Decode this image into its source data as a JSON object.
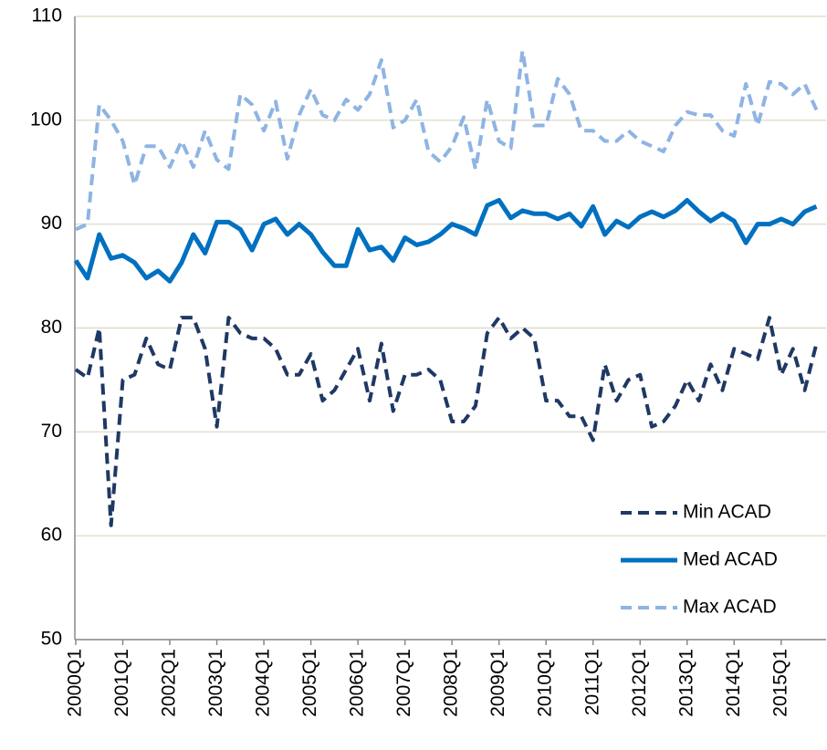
{
  "chart_data": {
    "type": "line",
    "categories": [
      "2000Q1",
      null,
      null,
      null,
      "2001Q1",
      null,
      null,
      null,
      "2002Q1",
      null,
      null,
      null,
      "2003Q1",
      null,
      null,
      null,
      "2004Q1",
      null,
      null,
      null,
      "2005Q1",
      null,
      null,
      null,
      "2006Q1",
      null,
      null,
      null,
      "2007Q1",
      null,
      null,
      null,
      "2008Q1",
      null,
      null,
      null,
      "2009Q1",
      null,
      null,
      null,
      "2010Q1",
      null,
      null,
      null,
      "2011Q1",
      null,
      null,
      null,
      "2012Q1",
      null,
      null,
      null,
      "2013Q1",
      null,
      null,
      null,
      "2014Q1",
      null,
      null,
      null,
      "2015Q1",
      null,
      null,
      null
    ],
    "series": [
      {
        "name": "Min ACAD",
        "color": "#1f3864",
        "dash": true,
        "values": [
          76,
          75.2,
          80,
          61,
          75,
          75.5,
          79,
          76.5,
          76,
          81,
          81,
          78,
          70.5,
          81,
          79.5,
          79,
          79,
          78,
          75.5,
          75.5,
          77.5,
          73,
          74,
          76,
          78,
          73,
          78.5,
          72,
          75.5,
          75.5,
          76,
          75,
          71,
          71,
          72.5,
          79.5,
          81,
          79,
          80,
          79,
          73,
          73,
          71.5,
          71.5,
          69.2,
          76.5,
          73,
          75,
          75.5,
          70.5,
          71,
          72.5,
          75,
          73,
          76.5,
          74,
          78,
          77.5,
          77,
          81,
          75.5,
          78,
          74,
          78.5
        ]
      },
      {
        "name": "Med ACAD",
        "color": "#0070c0",
        "dash": false,
        "values": [
          86.5,
          84.8,
          89,
          86.7,
          87,
          86.3,
          84.8,
          85.5,
          84.5,
          86.3,
          89,
          87.2,
          90.2,
          90.2,
          89.5,
          87.5,
          90,
          90.5,
          89,
          90,
          89,
          87.3,
          86,
          86,
          89.5,
          87.5,
          87.8,
          86.5,
          88.7,
          88,
          88.3,
          89,
          90,
          89.6,
          89,
          91.8,
          92.3,
          90.6,
          91.3,
          91,
          91,
          90.5,
          91,
          89.8,
          91.7,
          89,
          90.3,
          89.7,
          90.7,
          91.2,
          90.7,
          91.3,
          92.3,
          91.2,
          90.3,
          91,
          90.3,
          88.2,
          90,
          90,
          90.5,
          90,
          91.2,
          91.7
        ]
      },
      {
        "name": "Max ACAD",
        "color": "#8eb4e3",
        "dash": true,
        "values": [
          89.5,
          90,
          101.5,
          100,
          98,
          93.8,
          97.5,
          97.5,
          95.5,
          98,
          95.5,
          99,
          96.2,
          95.3,
          102.5,
          101.5,
          99,
          101.8,
          96.3,
          100.5,
          103,
          100.5,
          100,
          102,
          101,
          102.5,
          105.8,
          99.3,
          100,
          102,
          97,
          96,
          97.5,
          100.3,
          95.3,
          102,
          98,
          97.3,
          106.7,
          99.5,
          99.5,
          104,
          102.5,
          99,
          99,
          98,
          98,
          99,
          98,
          97.5,
          97,
          99.5,
          100.8,
          100.5,
          100.5,
          99,
          98.5,
          103.5,
          99.5,
          103.7,
          103.5,
          102.5,
          103.5,
          101
        ]
      }
    ],
    "ylim": [
      50,
      110
    ],
    "yticks": [
      50,
      60,
      70,
      80,
      90,
      100,
      110
    ],
    "grid": true,
    "legend": "lower-right"
  }
}
